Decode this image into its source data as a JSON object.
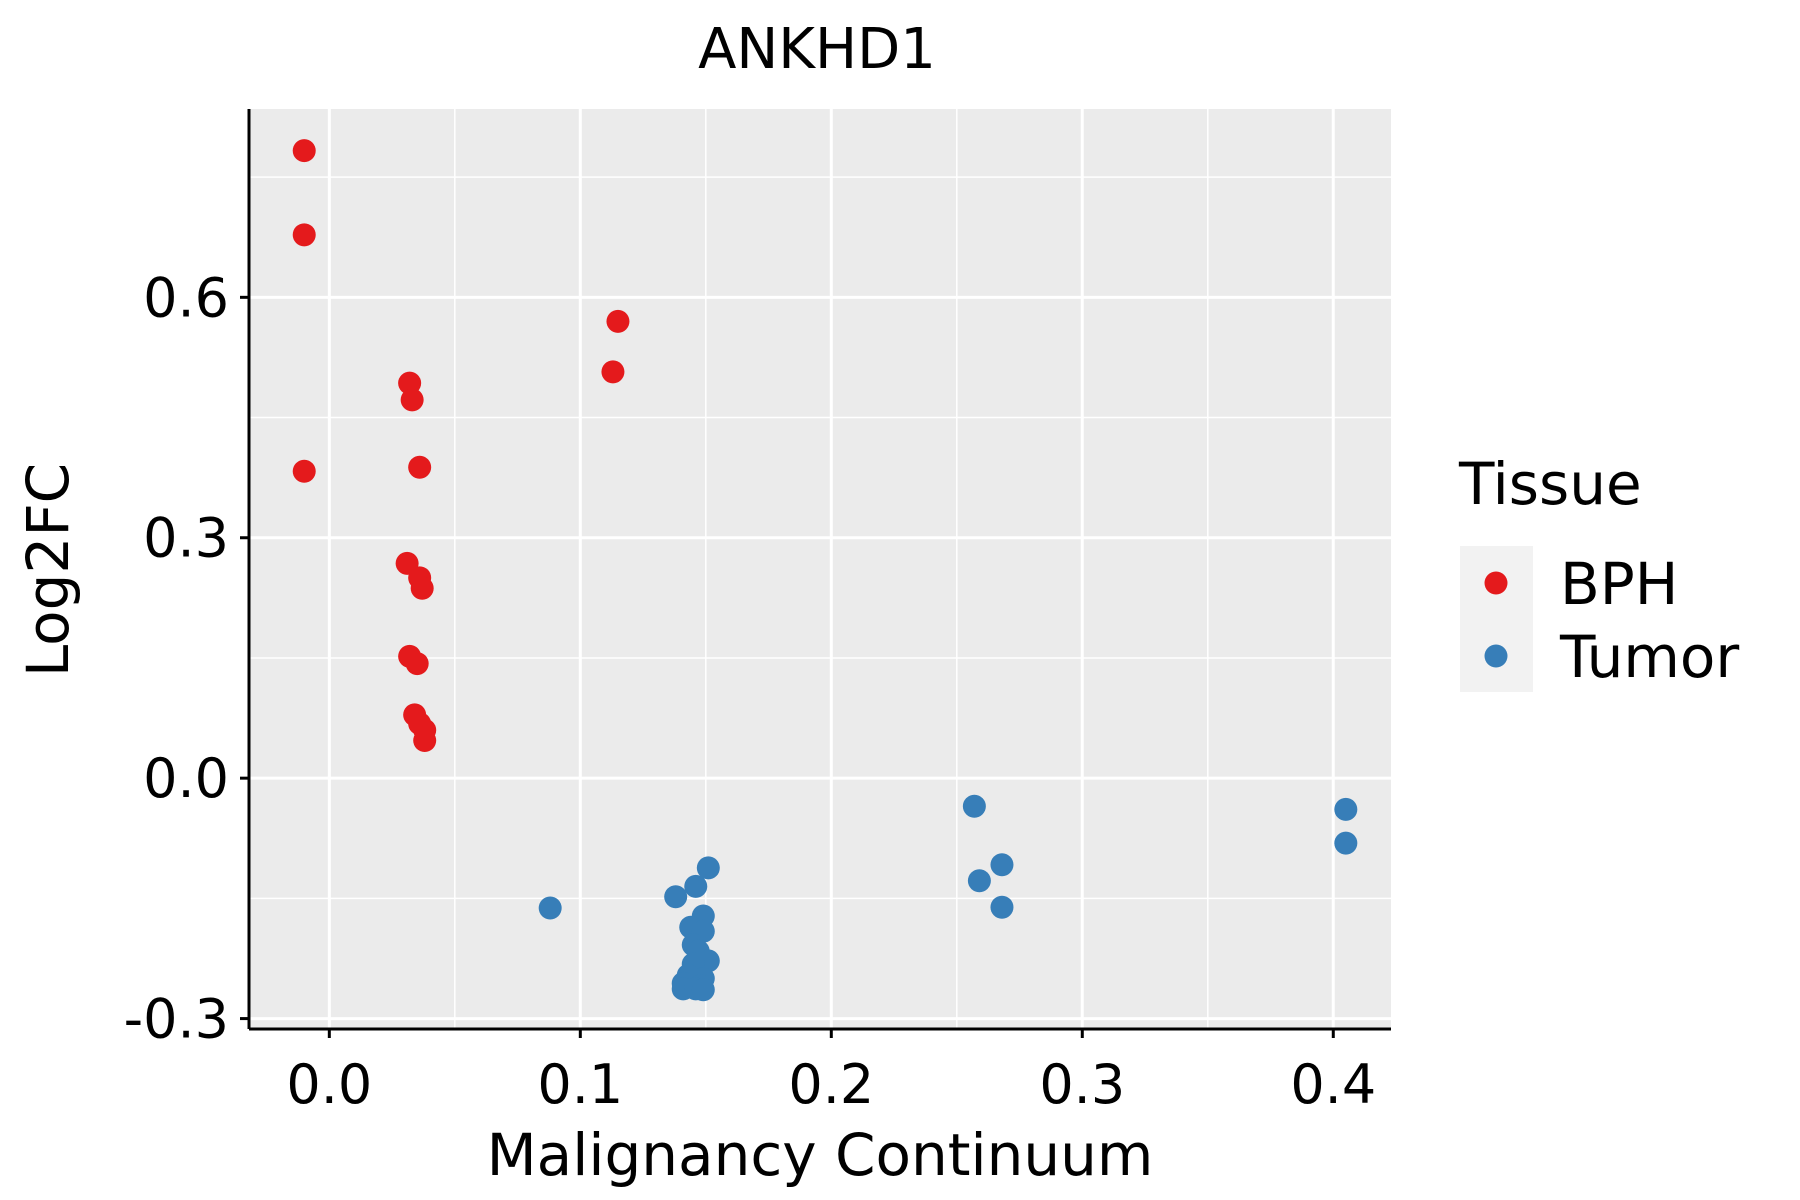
{
  "chart_data": {
    "type": "scatter",
    "title": "ANKHD1",
    "xlabel": "Malignancy Continuum",
    "ylabel": "Log2FC",
    "xlim": [
      -0.032,
      0.423
    ],
    "ylim": [
      -0.313,
      0.835
    ],
    "x_ticks": [
      0.0,
      0.1,
      0.2,
      0.3,
      0.4
    ],
    "x_tick_labels": [
      "0.0",
      "0.1",
      "0.2",
      "0.3",
      "0.4"
    ],
    "y_ticks": [
      -0.3,
      0.0,
      0.3,
      0.6
    ],
    "y_tick_labels": [
      "-0.3",
      "0.0",
      "0.3",
      "0.6"
    ],
    "grid": true,
    "legend": {
      "title": "Tissue",
      "placement": "right",
      "entries": [
        {
          "label": "BPH",
          "color": "#E41A1C"
        },
        {
          "label": "Tumor",
          "color": "#377EB8"
        }
      ]
    },
    "series": [
      {
        "name": "BPH",
        "color": "#E41A1C",
        "points": [
          [
            -0.01,
            0.783
          ],
          [
            -0.01,
            0.678
          ],
          [
            -0.01,
            0.383
          ],
          [
            0.032,
            0.493
          ],
          [
            0.033,
            0.472
          ],
          [
            0.036,
            0.388
          ],
          [
            0.031,
            0.268
          ],
          [
            0.036,
            0.25
          ],
          [
            0.037,
            0.237
          ],
          [
            0.032,
            0.152
          ],
          [
            0.035,
            0.143
          ],
          [
            0.034,
            0.079
          ],
          [
            0.036,
            0.068
          ],
          [
            0.038,
            0.06
          ],
          [
            0.038,
            0.047
          ],
          [
            0.115,
            0.57
          ],
          [
            0.113,
            0.507
          ]
        ]
      },
      {
        "name": "Tumor",
        "color": "#377EB8",
        "points": [
          [
            0.088,
            -0.162
          ],
          [
            0.138,
            -0.148
          ],
          [
            0.146,
            -0.135
          ],
          [
            0.151,
            -0.112
          ],
          [
            0.149,
            -0.172
          ],
          [
            0.144,
            -0.186
          ],
          [
            0.149,
            -0.191
          ],
          [
            0.145,
            -0.208
          ],
          [
            0.147,
            -0.216
          ],
          [
            0.151,
            -0.228
          ],
          [
            0.145,
            -0.232
          ],
          [
            0.143,
            -0.246
          ],
          [
            0.149,
            -0.25
          ],
          [
            0.141,
            -0.256
          ],
          [
            0.148,
            -0.259
          ],
          [
            0.141,
            -0.263
          ],
          [
            0.146,
            -0.263
          ],
          [
            0.149,
            -0.264
          ],
          [
            0.257,
            -0.035
          ],
          [
            0.259,
            -0.128
          ],
          [
            0.268,
            -0.108
          ],
          [
            0.268,
            -0.161
          ],
          [
            0.405,
            -0.039
          ],
          [
            0.405,
            -0.081
          ]
        ]
      }
    ]
  }
}
